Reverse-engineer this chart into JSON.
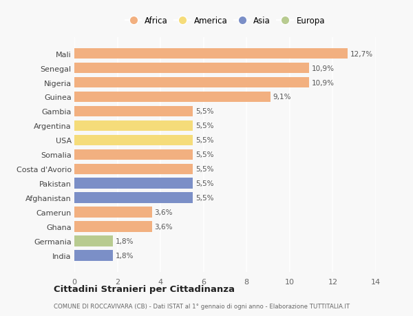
{
  "countries": [
    "Mali",
    "Senegal",
    "Nigeria",
    "Guinea",
    "Gambia",
    "Argentina",
    "USA",
    "Somalia",
    "Costa d'Avorio",
    "Pakistan",
    "Afghanistan",
    "Camerun",
    "Ghana",
    "Germania",
    "India"
  ],
  "values": [
    12.7,
    10.9,
    10.9,
    9.1,
    5.5,
    5.5,
    5.5,
    5.5,
    5.5,
    5.5,
    5.5,
    3.6,
    3.6,
    1.8,
    1.8
  ],
  "labels": [
    "12,7%",
    "10,9%",
    "10,9%",
    "9,1%",
    "5,5%",
    "5,5%",
    "5,5%",
    "5,5%",
    "5,5%",
    "5,5%",
    "5,5%",
    "3,6%",
    "3,6%",
    "1,8%",
    "1,8%"
  ],
  "continents": [
    "Africa",
    "Africa",
    "Africa",
    "Africa",
    "Africa",
    "America",
    "America",
    "Africa",
    "Africa",
    "Asia",
    "Asia",
    "Africa",
    "Africa",
    "Europa",
    "Asia"
  ],
  "colors": {
    "Africa": "#F2B080",
    "America": "#F5DC7A",
    "Asia": "#7B8FC7",
    "Europa": "#B8CB90"
  },
  "legend_order": [
    "Africa",
    "America",
    "Asia",
    "Europa"
  ],
  "xlim": [
    0,
    14
  ],
  "xticks": [
    0,
    2,
    4,
    6,
    8,
    10,
    12,
    14
  ],
  "title": "Cittadini Stranieri per Cittadinanza",
  "subtitle": "COMUNE DI ROCCAVIVARA (CB) - Dati ISTAT al 1° gennaio di ogni anno - Elaborazione TUTTITALIA.IT",
  "bg_color": "#f8f8f8",
  "grid_color": "#ffffff",
  "bar_height": 0.75
}
